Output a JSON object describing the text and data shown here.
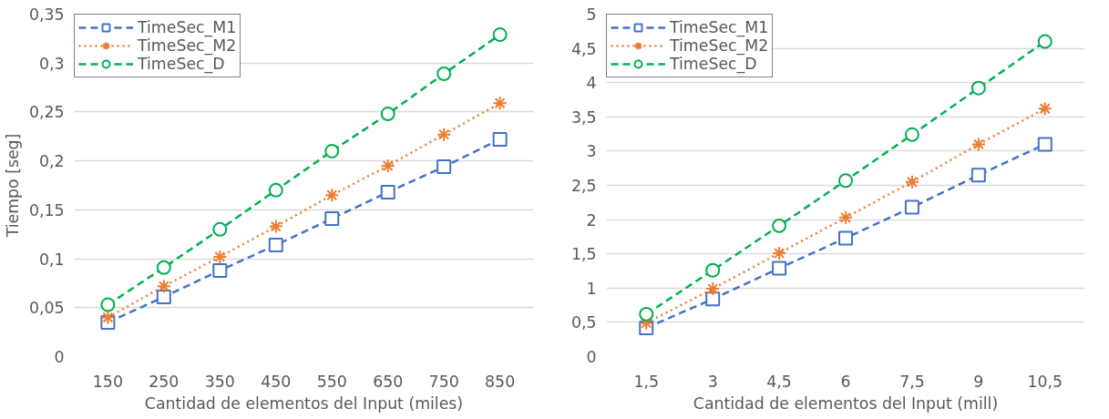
{
  "chart_data": [
    {
      "type": "line",
      "xlabel": "Cantidad de elementos del Input (miles)",
      "ylabel": "Tiempo [seg]",
      "categories": [
        "150",
        "250",
        "350",
        "450",
        "550",
        "650",
        "750",
        "850"
      ],
      "ylim": [
        0,
        0.35
      ],
      "yticks": [
        0,
        {
          "value": 0.05,
          "label": "0,05"
        },
        {
          "value": 0.1,
          "label": "0,1"
        },
        {
          "value": 0.15,
          "label": "0,15"
        },
        {
          "value": 0.2,
          "label": "0,2"
        },
        {
          "value": 0.25,
          "label": "0,25"
        },
        {
          "value": 0.3,
          "label": "0,3"
        },
        {
          "value": 0.35,
          "label": "0,35"
        }
      ],
      "grid": "y",
      "legend": "top left",
      "series": [
        {
          "name": "TimeSec_M1",
          "color": "#4472c4",
          "marker": "square",
          "line_style": "dashed",
          "values": [
            0.035,
            0.061,
            0.088,
            0.114,
            0.141,
            0.168,
            0.194,
            0.222
          ]
        },
        {
          "name": "TimeSec_M2",
          "color": "#ed7d31",
          "marker": "cross",
          "line_style": "dotted",
          "values": [
            0.04,
            0.072,
            0.102,
            0.133,
            0.165,
            0.195,
            0.227,
            0.259
          ]
        },
        {
          "name": "TimeSec_D",
          "color": "#00b050",
          "marker": "circle",
          "line_style": "dashed",
          "values": [
            0.053,
            0.091,
            0.13,
            0.17,
            0.21,
            0.248,
            0.289,
            0.329
          ]
        }
      ]
    },
    {
      "type": "line",
      "xlabel": "Cantidad de elementos del Input (mill)",
      "categories": [
        "1,5",
        "3",
        "4,5",
        "6",
        "7,5",
        "9",
        "10,5"
      ],
      "ylim": [
        0,
        5
      ],
      "yticks": [
        0,
        {
          "value": 0.5,
          "label": "0,5"
        },
        1,
        {
          "value": 1.5,
          "label": "1,5"
        },
        2,
        {
          "value": 2.5,
          "label": "2,5"
        },
        3,
        {
          "value": 3.5,
          "label": "3,5"
        },
        4,
        {
          "value": 4.5,
          "label": "4,5"
        },
        5
      ],
      "grid": "y",
      "legend": "top left",
      "series": [
        {
          "name": "TimeSec_M1",
          "color": "#4472c4",
          "marker": "square",
          "line_style": "dashed",
          "values": [
            0.42,
            0.84,
            1.29,
            1.73,
            2.18,
            2.65,
            3.1
          ]
        },
        {
          "name": "TimeSec_M2",
          "color": "#ed7d31",
          "marker": "cross",
          "line_style": "dotted",
          "values": [
            0.49,
            0.99,
            1.51,
            2.03,
            2.55,
            3.1,
            3.62
          ]
        },
        {
          "name": "TimeSec_D",
          "color": "#00b050",
          "marker": "circle",
          "line_style": "dashed",
          "values": [
            0.62,
            1.26,
            1.91,
            2.57,
            3.24,
            3.92,
            4.6
          ]
        }
      ]
    }
  ]
}
